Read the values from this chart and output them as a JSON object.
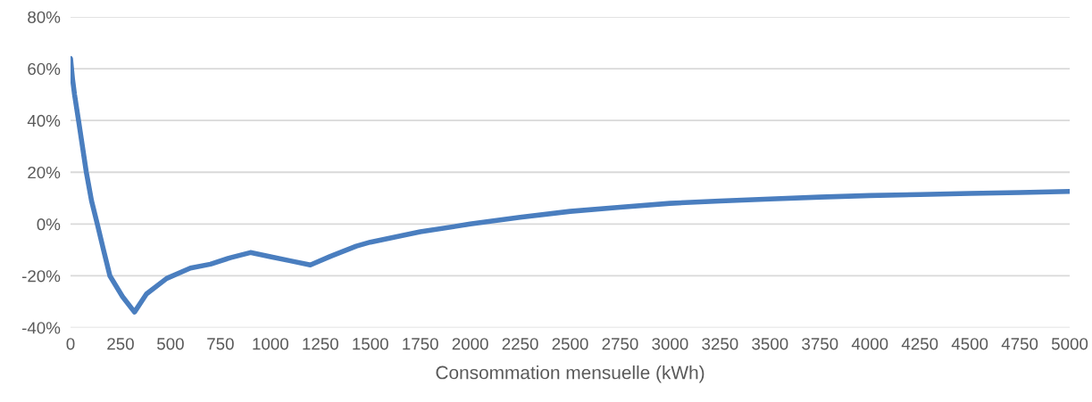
{
  "chart_data": {
    "type": "line",
    "xlabel": "Consommation mensuelle (kWh)",
    "x": [
      0,
      10,
      20,
      40,
      79,
      105,
      134,
      165,
      197,
      260,
      320,
      380,
      481,
      600,
      700,
      800,
      900,
      1000,
      1100,
      1200,
      1300,
      1430,
      1500,
      1750,
      2000,
      2250,
      2500,
      2750,
      3000,
      3250,
      3500,
      3750,
      4000,
      4250,
      4500,
      4750,
      5000
    ],
    "series": [
      {
        "color": "#4a7ebf",
        "values": [
          64,
          56,
          50,
          40,
          20,
          9,
          0,
          -10,
          -20,
          -28,
          -34,
          -27,
          -21,
          -17,
          -15.5,
          -13,
          -11,
          -12.6,
          -14.2,
          -15.8,
          -12.5,
          -8.5,
          -7,
          -3,
          0,
          2.6,
          4.9,
          6.5,
          8,
          8.9,
          9.7,
          10.4,
          11,
          11.4,
          11.8,
          12.2,
          12.6
        ]
      }
    ],
    "xlim": [
      0,
      5000
    ],
    "xticks": [
      0,
      250,
      500,
      750,
      1000,
      1250,
      1500,
      1750,
      2000,
      2250,
      2500,
      2750,
      3000,
      3250,
      3500,
      3750,
      4000,
      4250,
      4500,
      4750,
      5000
    ],
    "ylim": [
      -40,
      80
    ],
    "yticks": [
      {
        "value": -40,
        "label": "-40%"
      },
      {
        "value": -20,
        "label": "-20%"
      },
      {
        "value": 0,
        "label": "0%"
      },
      {
        "value": 20,
        "label": "20%"
      },
      {
        "value": 40,
        "label": "40%"
      },
      {
        "value": 60,
        "label": "60%"
      },
      {
        "value": 80,
        "label": "80%"
      }
    ],
    "grid": "y",
    "marker": "none",
    "line_style": "solid"
  }
}
